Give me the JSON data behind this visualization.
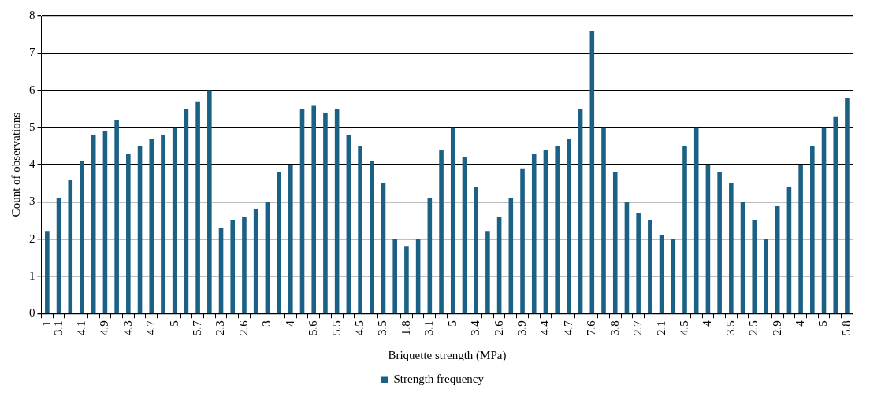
{
  "chart_data": {
    "type": "bar",
    "xlabel": "Briquette strength (MPa)",
    "ylabel": "Count of observations",
    "categories": [
      "1",
      "3.1",
      null,
      "4.1",
      null,
      "4.9",
      null,
      "4.3",
      null,
      "4.7",
      null,
      "5",
      null,
      "5.7",
      null,
      "2.3",
      null,
      "2.6",
      null,
      "3",
      null,
      "4",
      null,
      "5.6",
      null,
      "5.5",
      null,
      "4.5",
      null,
      "3.5",
      null,
      "1.8",
      null,
      "3.1",
      null,
      "5",
      null,
      "3.4",
      null,
      "2.6",
      null,
      "3.9",
      null,
      "4.4",
      null,
      "4.7",
      null,
      "7.6",
      null,
      "3.8",
      null,
      "2.7",
      null,
      "2.1",
      null,
      "4.5",
      null,
      "4",
      null,
      "3.5",
      null,
      "2.5",
      null,
      "2.9",
      null,
      "4",
      null,
      "5",
      null,
      "5.8"
    ],
    "series": [
      {
        "name": "Strength frequency",
        "color": "#1b6185",
        "values": [
          2.2,
          3.1,
          3.6,
          4.1,
          4.8,
          4.9,
          5.2,
          4.3,
          4.5,
          4.7,
          4.8,
          5.0,
          5.5,
          5.7,
          6.0,
          2.3,
          2.5,
          2.6,
          2.8,
          3.0,
          3.8,
          4.0,
          5.5,
          5.6,
          5.4,
          5.5,
          4.8,
          4.5,
          4.1,
          3.5,
          2.0,
          1.8,
          2.0,
          3.1,
          4.4,
          5.0,
          4.2,
          3.4,
          2.2,
          2.6,
          3.1,
          3.9,
          4.3,
          4.4,
          4.5,
          4.7,
          5.5,
          7.6,
          5.0,
          3.8,
          3.0,
          2.7,
          2.5,
          2.1,
          2.0,
          4.5,
          5.0,
          4.0,
          3.8,
          3.5,
          3.0,
          2.5,
          2.0,
          2.9,
          3.4,
          4.0,
          4.5,
          5.0,
          5.3,
          5.8
        ]
      }
    ],
    "ylim": [
      0,
      8
    ],
    "yticks": [
      0,
      1,
      2,
      3,
      4,
      5,
      6,
      7,
      8
    ],
    "grid": "y",
    "legend": "bottom"
  }
}
